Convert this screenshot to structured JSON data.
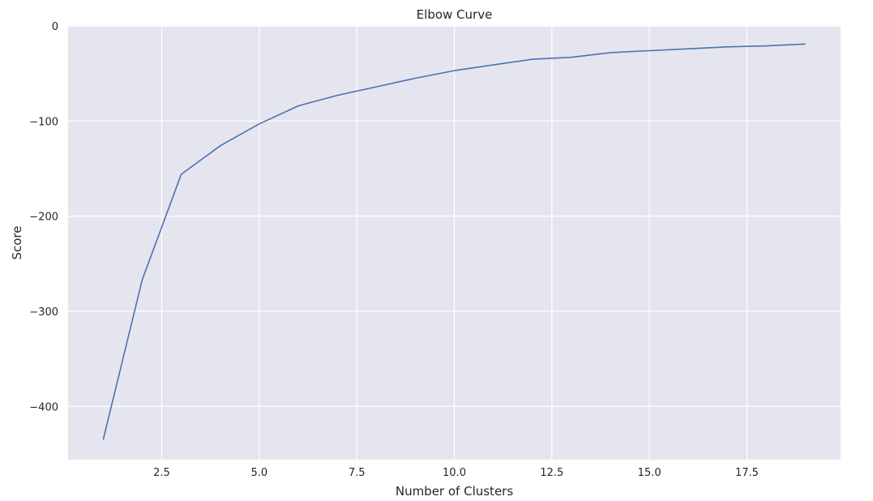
{
  "chart_data": {
    "type": "line",
    "title": "Elbow Curve",
    "xlabel": "Number of Clusters",
    "ylabel": "Score",
    "xlim": [
      0.1,
      19.9
    ],
    "ylim": [
      -456,
      0
    ],
    "xticks": [
      2.5,
      5.0,
      7.5,
      10.0,
      12.5,
      15.0,
      17.5
    ],
    "xtick_labels": [
      "2.5",
      "5.0",
      "7.5",
      "10.0",
      "12.5",
      "15.0",
      "17.5"
    ],
    "yticks": [
      0,
      -100,
      -200,
      -300,
      -400
    ],
    "ytick_labels": [
      "0",
      "−100",
      "−200",
      "−300",
      "−400"
    ],
    "grid": true,
    "colors": {
      "background": "#e5e5ef",
      "grid": "#ffffff",
      "line": "#4c72b0"
    },
    "series": [
      {
        "x": [
          1,
          2,
          3,
          4,
          5,
          6,
          7,
          8,
          9,
          10,
          11,
          12,
          13,
          14,
          15,
          16,
          17,
          18,
          19
        ],
        "values": [
          -435,
          -267,
          -156,
          -126,
          -103,
          -84,
          -73,
          -64,
          -55,
          -47,
          -41,
          -35,
          -33,
          -28,
          -26,
          -24,
          -22,
          -21,
          -19
        ]
      }
    ]
  }
}
